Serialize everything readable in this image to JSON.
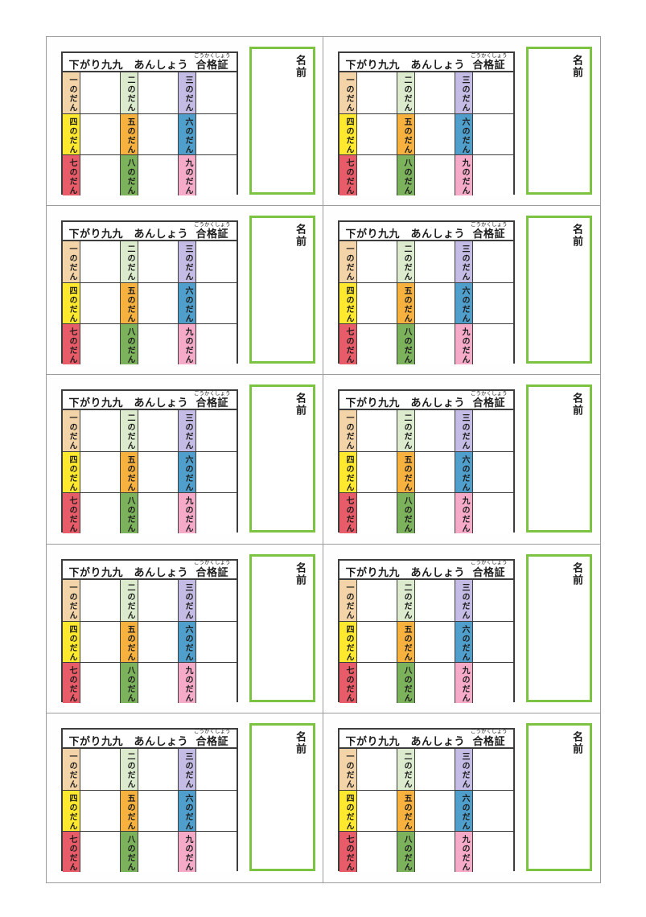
{
  "sheet": {
    "rows": 5,
    "columns": 2,
    "card_count": 10,
    "frame_border_color": "#9c9c9c"
  },
  "card": {
    "title": {
      "main": "下がり九九　あんしょう",
      "cert_word": "合格証",
      "cert_furigana": "ごうかくしょう"
    },
    "name_label": "名前",
    "name_box_border_color": "#7dc342",
    "grid_border_color": "#3d3d3d",
    "dan_cells": [
      {
        "label": "一のだん",
        "color": "#f3d4a8"
      },
      {
        "label": "二のだん",
        "color": "#dcebcd"
      },
      {
        "label": "三のだん",
        "color": "#c4bce4"
      },
      {
        "label": "四のだん",
        "color": "#ffe92e"
      },
      {
        "label": "五のだん",
        "color": "#f6b13e"
      },
      {
        "label": "六のだん",
        "color": "#4f9ecb"
      },
      {
        "label": "七のだん",
        "color": "#e85b68"
      },
      {
        "label": "八のだん",
        "color": "#7cb25c"
      },
      {
        "label": "九のだん",
        "color": "#f5aac8"
      }
    ]
  }
}
